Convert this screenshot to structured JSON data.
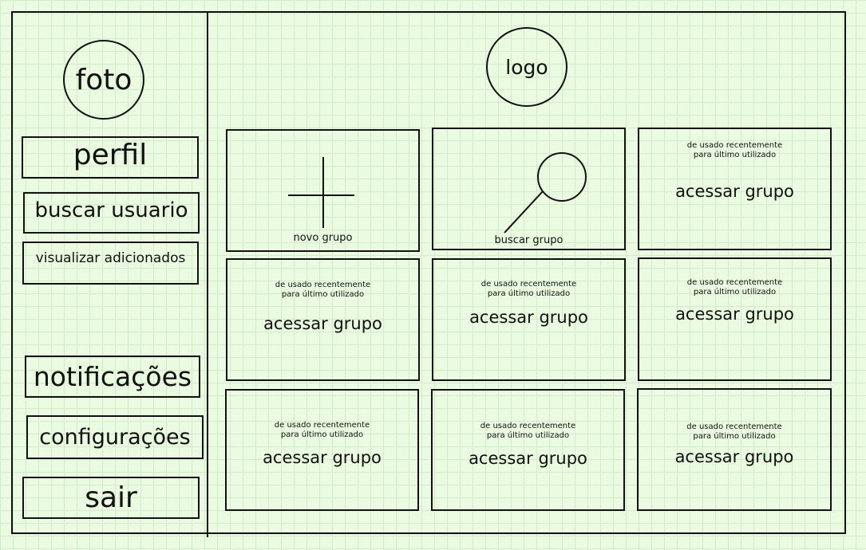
{
  "profile": {
    "photo_label": "foto"
  },
  "header": {
    "logo_label": "logo"
  },
  "sidebar": {
    "items": [
      {
        "label": "perfil"
      },
      {
        "label": "buscar usuario"
      },
      {
        "label": "visualizar adicionados"
      },
      {
        "label": "notificações"
      },
      {
        "label": "configurações"
      },
      {
        "label": "sair"
      }
    ]
  },
  "grid": {
    "new_group": {
      "label": "novo grupo",
      "icon": "plus-icon"
    },
    "search_group": {
      "label": "buscar grupo",
      "icon": "search-icon"
    },
    "groups": [
      {
        "note_line1": "de usado recentemente",
        "note_line2": "para último utilizado",
        "action": "acessar grupo"
      },
      {
        "note_line1": "de usado recentemente",
        "note_line2": "para último utilizado",
        "action": "acessar grupo"
      },
      {
        "note_line1": "de usado recentemente",
        "note_line2": "para último utilizado",
        "action": "acessar grupo"
      },
      {
        "note_line1": "de usado recentemente",
        "note_line2": "para último utilizado",
        "action": "acessar grupo"
      },
      {
        "note_line1": "de usado recentemente",
        "note_line2": "para último utilizado",
        "action": "acessar grupo"
      },
      {
        "note_line1": "de usado recentemente",
        "note_line2": "para último utilizado",
        "action": "acessar grupo"
      },
      {
        "note_line1": "de usado recentemente",
        "note_line2": "para último utilizado",
        "action": "acessar grupo"
      }
    ]
  }
}
